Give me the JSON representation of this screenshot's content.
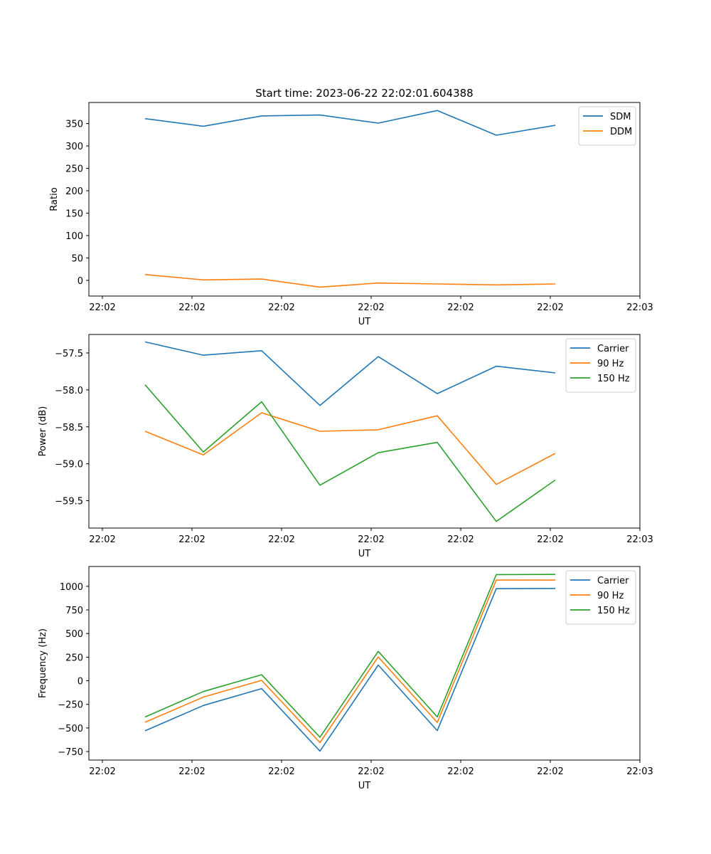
{
  "figure": {
    "title": "Start time: 2023-06-22 22:02:01.604388"
  },
  "chart_data": [
    {
      "type": "line",
      "title": "Start time: 2023-06-22 22:02:01.604388",
      "xlabel": "UT",
      "ylabel": "Ratio",
      "x_tick_labels": [
        "22:02",
        "22:02",
        "22:02",
        "22:02",
        "22:02",
        "22:02",
        "22:03"
      ],
      "y_ticks": [
        0,
        50,
        100,
        150,
        200,
        250,
        300,
        350
      ],
      "ylim": [
        -35,
        397
      ],
      "legend_position": "top-right",
      "grid": false,
      "series": [
        {
          "name": "SDM",
          "color": "#1f77b4",
          "values": [
            361,
            344,
            367,
            369,
            351,
            379,
            324,
            346
          ]
        },
        {
          "name": "DDM",
          "color": "#ff7f0e",
          "values": [
            13,
            1,
            3,
            -15,
            -6,
            -8,
            -10,
            -8
          ]
        }
      ]
    },
    {
      "type": "line",
      "title": "",
      "xlabel": "UT",
      "ylabel": "Power (dB)",
      "x_tick_labels": [
        "22:02",
        "22:02",
        "22:02",
        "22:02",
        "22:02",
        "22:02",
        "22:03"
      ],
      "y_ticks": [
        -59.5,
        -59.0,
        -58.5,
        -58.0,
        -57.5
      ],
      "y_tick_labels": [
        "−59.5",
        "−59.0",
        "−58.5",
        "−58.0",
        "−57.5"
      ],
      "ylim": [
        -59.87,
        -57.25
      ],
      "legend_position": "top-right",
      "grid": false,
      "series": [
        {
          "name": "Carrier",
          "color": "#1f77b4",
          "values": [
            -57.35,
            -57.53,
            -57.47,
            -58.21,
            -57.55,
            -58.05,
            -57.68,
            -57.77
          ]
        },
        {
          "name": "90 Hz",
          "color": "#ff7f0e",
          "values": [
            -58.56,
            -58.88,
            -58.31,
            -58.56,
            -58.54,
            -58.35,
            -59.28,
            -58.86
          ]
        },
        {
          "name": "150 Hz",
          "color": "#2ca02c",
          "values": [
            -57.93,
            -58.84,
            -58.16,
            -59.29,
            -58.85,
            -58.71,
            -59.78,
            -59.22
          ]
        }
      ]
    },
    {
      "type": "line",
      "title": "",
      "xlabel": "UT",
      "ylabel": "Frequency (Hz)",
      "x_tick_labels": [
        "22:02",
        "22:02",
        "22:02",
        "22:02",
        "22:02",
        "22:02",
        "22:03"
      ],
      "y_ticks": [
        -750,
        -500,
        -250,
        0,
        250,
        500,
        750,
        1000
      ],
      "y_tick_labels": [
        "−750",
        "−500",
        "−250",
        "0",
        "250",
        "500",
        "750",
        "1000"
      ],
      "ylim": [
        -840,
        1210
      ],
      "legend_position": "top-right",
      "grid": false,
      "series": [
        {
          "name": "Carrier",
          "color": "#1f77b4",
          "values": [
            -530,
            -262,
            -83,
            -745,
            166,
            -528,
            975,
            977
          ]
        },
        {
          "name": "90 Hz",
          "color": "#ff7f0e",
          "values": [
            -440,
            -173,
            4,
            -655,
            252,
            -441,
            1066,
            1066
          ]
        },
        {
          "name": "150 Hz",
          "color": "#2ca02c",
          "values": [
            -384,
            -114,
            64,
            -598,
            311,
            -383,
            1124,
            1126
          ]
        }
      ]
    }
  ]
}
